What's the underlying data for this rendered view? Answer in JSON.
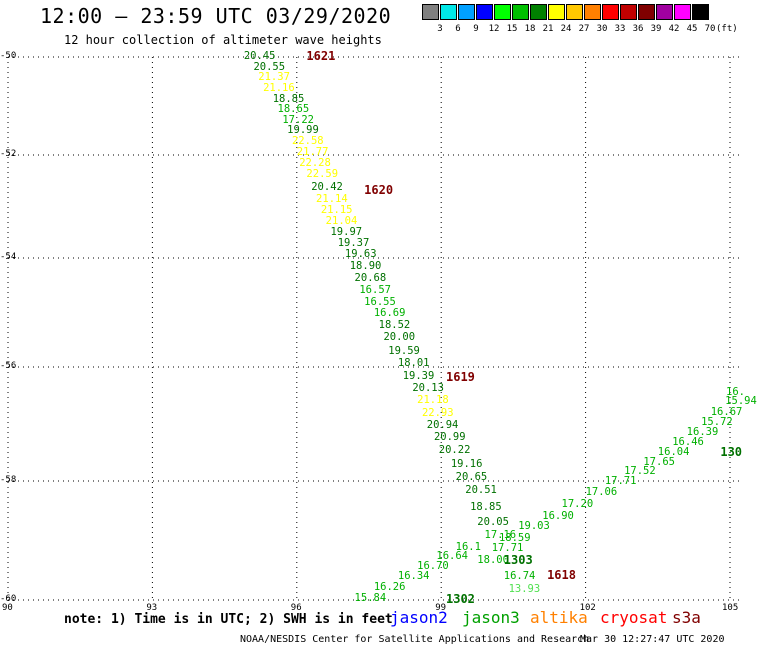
{
  "title": "12:00 – 23:59 UTC 03/29/2020",
  "subtitle": "12 hour collection of altimeter wave heights",
  "color_scale": {
    "unit": "(ft)",
    "bins": [
      {
        "label": "3",
        "color": "#808080"
      },
      {
        "label": "6",
        "color": "#00e8e8"
      },
      {
        "label": "9",
        "color": "#00a0ff"
      },
      {
        "label": "12",
        "color": "#0000ff"
      },
      {
        "label": "15",
        "color": "#00ff00"
      },
      {
        "label": "18",
        "color": "#00c000"
      },
      {
        "label": "21",
        "color": "#008000"
      },
      {
        "label": "24",
        "color": "#ffff00"
      },
      {
        "label": "27",
        "color": "#ffc800"
      },
      {
        "label": "30",
        "color": "#ff8000"
      },
      {
        "label": "33",
        "color": "#ff0000"
      },
      {
        "label": "36",
        "color": "#c00000"
      },
      {
        "label": "39",
        "color": "#800000"
      },
      {
        "label": "42",
        "color": "#a000a0"
      },
      {
        "label": "45",
        "color": "#ff00ff"
      },
      {
        "label": "70",
        "color": "#000000"
      }
    ]
  },
  "colors": {
    "dark_green": "#007000",
    "green": "#00b000",
    "light_green": "#50e050",
    "yellow": "#ffff00",
    "pass_label": "#800000",
    "grid": "#000000"
  },
  "axes": {
    "lat_labels": [
      "-50",
      "-52",
      "-54",
      "-56",
      "-58",
      "-60"
    ],
    "lon_labels": [
      "90",
      "93",
      "96",
      "99",
      "102",
      "105"
    ]
  },
  "passes": [
    {
      "label": "1621",
      "lon": 96.2,
      "lat": -50.0
    },
    {
      "label": "1620",
      "lon": 97.4,
      "lat": -52.7
    },
    {
      "label": "1619",
      "lon": 99.1,
      "lat": -56.2
    },
    {
      "label": "1618",
      "lon": 101.2,
      "lat": -59.6
    },
    {
      "label": "1303",
      "lon": 100.3,
      "lat": -59.35
    },
    {
      "label": "1302",
      "lon": 99.1,
      "lat": -60.0
    },
    {
      "label": "130",
      "lon": 104.8,
      "lat": -57.5
    }
  ],
  "observations": [
    {
      "v": "20.45",
      "lon": 94.9,
      "lat": -50.0,
      "c": "dark_green"
    },
    {
      "v": "20.55",
      "lon": 95.1,
      "lat": -50.22,
      "c": "dark_green"
    },
    {
      "v": "21.37",
      "lon": 95.2,
      "lat": -50.43,
      "c": "yellow"
    },
    {
      "v": "21.16",
      "lon": 95.3,
      "lat": -50.65,
      "c": "yellow"
    },
    {
      "v": "18.85",
      "lon": 95.5,
      "lat": -50.87,
      "c": "dark_green"
    },
    {
      "v": "18.65",
      "lon": 95.6,
      "lat": -51.08,
      "c": "green"
    },
    {
      "v": "17.22",
      "lon": 95.7,
      "lat": -51.3,
      "c": "green"
    },
    {
      "v": "19.99",
      "lon": 95.8,
      "lat": -51.52,
      "c": "dark_green"
    },
    {
      "v": "22.58",
      "lon": 95.9,
      "lat": -51.73,
      "c": "yellow"
    },
    {
      "v": "21.77",
      "lon": 96.0,
      "lat": -51.95,
      "c": "yellow"
    },
    {
      "v": "22.28",
      "lon": 96.05,
      "lat": -52.17,
      "c": "yellow"
    },
    {
      "v": "22.59",
      "lon": 96.2,
      "lat": -52.38,
      "c": "yellow"
    },
    {
      "v": "20.42",
      "lon": 96.3,
      "lat": -52.65,
      "c": "dark_green"
    },
    {
      "v": "21.14",
      "lon": 96.4,
      "lat": -52.87,
      "c": "yellow"
    },
    {
      "v": "21.15",
      "lon": 96.5,
      "lat": -53.08,
      "c": "yellow"
    },
    {
      "v": "21.04",
      "lon": 96.6,
      "lat": -53.3,
      "c": "yellow"
    },
    {
      "v": "19.97",
      "lon": 96.7,
      "lat": -53.52,
      "c": "dark_green"
    },
    {
      "v": "19.37",
      "lon": 96.85,
      "lat": -53.73,
      "c": "dark_green"
    },
    {
      "v": "19.63",
      "lon": 97.0,
      "lat": -53.95,
      "c": "dark_green"
    },
    {
      "v": "18.90",
      "lon": 97.1,
      "lat": -54.17,
      "c": "dark_green"
    },
    {
      "v": "20.68",
      "lon": 97.2,
      "lat": -54.38,
      "c": "dark_green"
    },
    {
      "v": "16.57",
      "lon": 97.3,
      "lat": -54.6,
      "c": "green"
    },
    {
      "v": "16.55",
      "lon": 97.4,
      "lat": -54.82,
      "c": "green"
    },
    {
      "v": "16.69",
      "lon": 97.6,
      "lat": -55.03,
      "c": "green"
    },
    {
      "v": "18.52",
      "lon": 97.7,
      "lat": -55.25,
      "c": "dark_green"
    },
    {
      "v": "20.00",
      "lon": 97.8,
      "lat": -55.47,
      "c": "dark_green"
    },
    {
      "v": "19.59",
      "lon": 97.9,
      "lat": -55.72,
      "c": "dark_green"
    },
    {
      "v": "18.01",
      "lon": 98.1,
      "lat": -55.95,
      "c": "dark_green"
    },
    {
      "v": "19.39",
      "lon": 98.2,
      "lat": -56.17,
      "c": "dark_green"
    },
    {
      "v": "20.13",
      "lon": 98.4,
      "lat": -56.38,
      "c": "dark_green"
    },
    {
      "v": "21.18",
      "lon": 98.5,
      "lat": -56.6,
      "c": "yellow"
    },
    {
      "v": "22.93",
      "lon": 98.6,
      "lat": -56.82,
      "c": "yellow"
    },
    {
      "v": "20.94",
      "lon": 98.7,
      "lat": -57.03,
      "c": "dark_green"
    },
    {
      "v": "20.99",
      "lon": 98.85,
      "lat": -57.25,
      "c": "dark_green"
    },
    {
      "v": "20.22",
      "lon": 98.95,
      "lat": -57.47,
      "c": "dark_green"
    },
    {
      "v": "19.16",
      "lon": 99.2,
      "lat": -57.72,
      "c": "dark_green"
    },
    {
      "v": "20.65",
      "lon": 99.3,
      "lat": -57.95,
      "c": "dark_green"
    },
    {
      "v": "20.51",
      "lon": 99.5,
      "lat": -58.17,
      "c": "dark_green"
    },
    {
      "v": "18.85",
      "lon": 99.6,
      "lat": -58.45,
      "c": "dark_green"
    },
    {
      "v": "20.05",
      "lon": 99.75,
      "lat": -58.7,
      "c": "dark_green"
    },
    {
      "v": "17.16",
      "lon": 99.9,
      "lat": -58.93,
      "c": "green"
    },
    {
      "v": "17.71",
      "lon": 100.05,
      "lat": -59.15,
      "c": "green"
    },
    {
      "v": "18.00",
      "lon": 99.75,
      "lat": -59.35,
      "c": "green"
    },
    {
      "v": "16.74",
      "lon": 100.3,
      "lat": -59.62,
      "c": "green"
    },
    {
      "v": "13.93",
      "lon": 100.4,
      "lat": -59.83,
      "c": "light_green"
    },
    {
      "v": "15.84",
      "lon": 97.2,
      "lat": -59.98,
      "c": "green"
    },
    {
      "v": "16.26",
      "lon": 97.6,
      "lat": -59.8,
      "c": "green"
    },
    {
      "v": "16.34",
      "lon": 98.1,
      "lat": -59.62,
      "c": "green"
    },
    {
      "v": "16.70",
      "lon": 98.5,
      "lat": -59.45,
      "c": "green"
    },
    {
      "v": "16.64",
      "lon": 98.9,
      "lat": -59.27,
      "c": "green"
    },
    {
      "v": "16.1",
      "lon": 99.3,
      "lat": -59.12,
      "c": "green"
    },
    {
      "v": "18.59",
      "lon": 100.2,
      "lat": -58.98,
      "c": "green"
    },
    {
      "v": "19.03",
      "lon": 100.6,
      "lat": -58.78,
      "c": "green"
    },
    {
      "v": "16.90",
      "lon": 101.1,
      "lat": -58.6,
      "c": "green"
    },
    {
      "v": "17.20",
      "lon": 101.5,
      "lat": -58.4,
      "c": "green"
    },
    {
      "v": "17.06",
      "lon": 102.0,
      "lat": -58.2,
      "c": "green"
    },
    {
      "v": "17.71",
      "lon": 102.4,
      "lat": -58.02,
      "c": "green"
    },
    {
      "v": "17.52",
      "lon": 102.8,
      "lat": -57.85,
      "c": "green"
    },
    {
      "v": "17.65",
      "lon": 103.2,
      "lat": -57.68,
      "c": "green"
    },
    {
      "v": "16.04",
      "lon": 103.5,
      "lat": -57.5,
      "c": "green"
    },
    {
      "v": "16.46",
      "lon": 103.8,
      "lat": -57.33,
      "c": "green"
    },
    {
      "v": "16.39",
      "lon": 104.1,
      "lat": -57.15,
      "c": "green"
    },
    {
      "v": "15.72",
      "lon": 104.4,
      "lat": -56.98,
      "c": "green"
    },
    {
      "v": "16.67",
      "lon": 104.6,
      "lat": -56.8,
      "c": "green"
    },
    {
      "v": "15.94",
      "lon": 104.9,
      "lat": -56.62,
      "c": "green"
    },
    {
      "v": "16.",
      "lon": 105.0,
      "lat": -56.45,
      "c": "green"
    }
  ],
  "note": "note: 1) Time is in UTC; 2) SWH is in feet",
  "satellites": [
    {
      "name": "jason2",
      "color": "#0000ff"
    },
    {
      "name": "jason3",
      "color": "#00a000"
    },
    {
      "name": "altika",
      "color": "#ff8000"
    },
    {
      "name": "cryosat",
      "color": "#ff0000"
    },
    {
      "name": "s3a",
      "color": "#800000"
    }
  ],
  "credit": "NOAA/NESDIS Center for Satellite Applications and Research",
  "timestamp": "Mar 30 12:27:47 UTC 2020"
}
